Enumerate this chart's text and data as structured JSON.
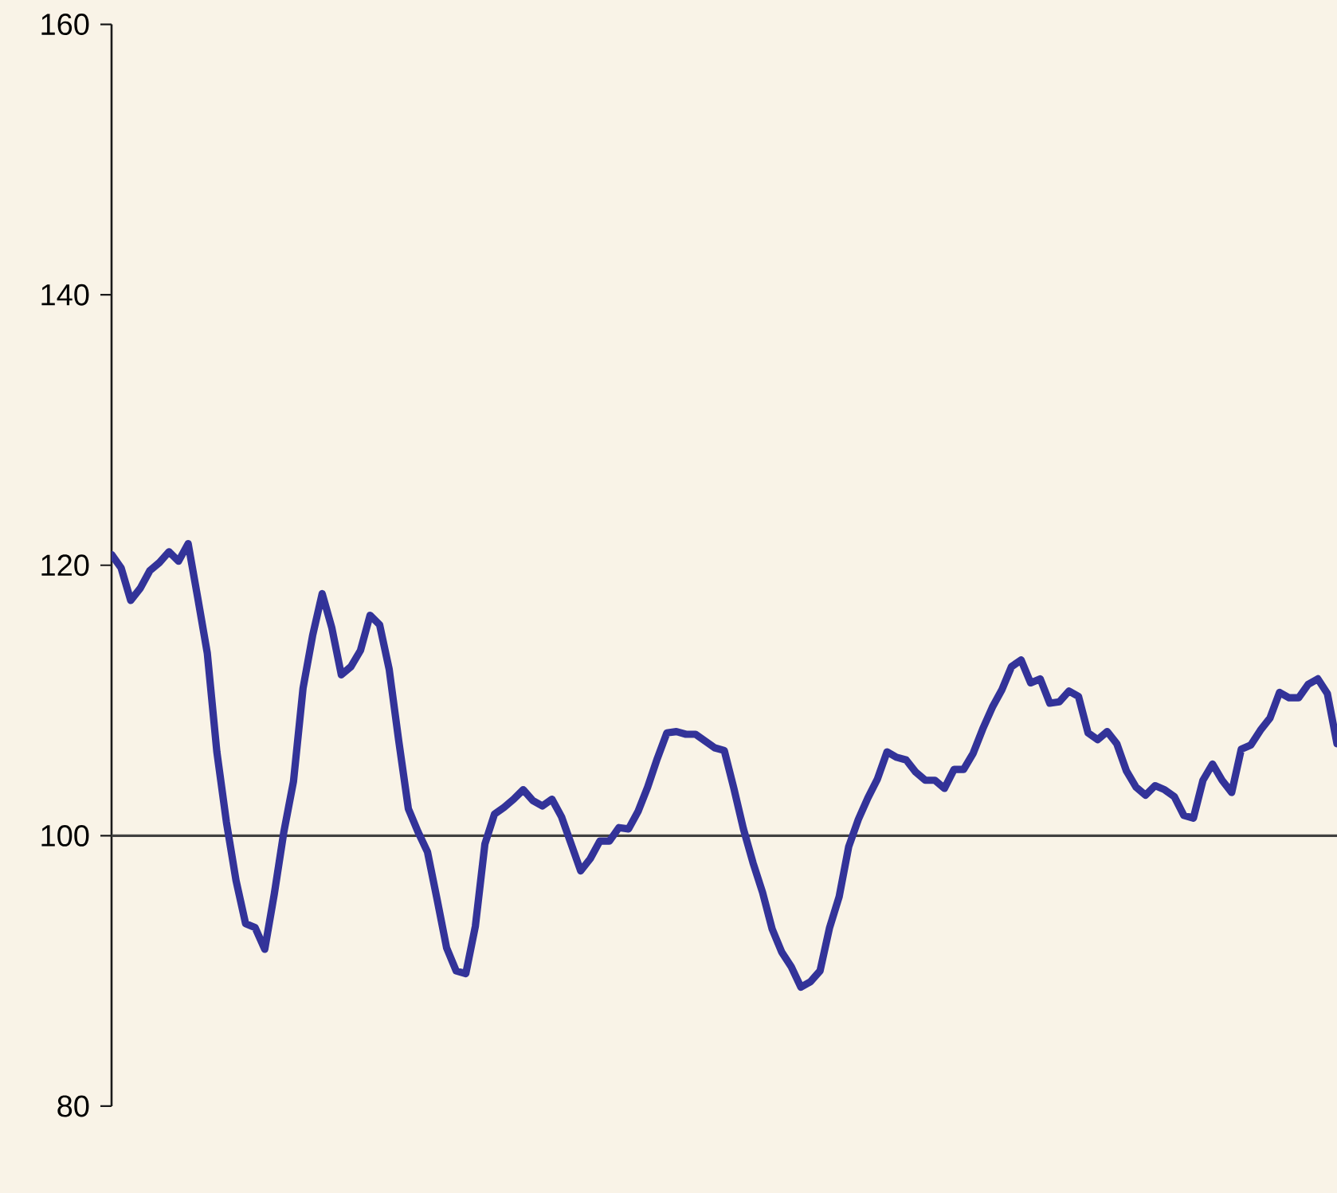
{
  "chart_data": {
    "type": "line",
    "categories": [
      null,
      null,
      null,
      null,
      null,
      null,
      null,
      null,
      null,
      null,
      null,
      null,
      null,
      null,
      null,
      null,
      null,
      null,
      null,
      null,
      null,
      null,
      null,
      null,
      null,
      null,
      null,
      null,
      null,
      null,
      null,
      null,
      null,
      null,
      null,
      null,
      null,
      null,
      null,
      null,
      null,
      null,
      null,
      null,
      null,
      null,
      null,
      null,
      null,
      null,
      null,
      null,
      null,
      null,
      null,
      null,
      null,
      null,
      null,
      null,
      null,
      null,
      null,
      null,
      null,
      null,
      null,
      null,
      null,
      null,
      null,
      null,
      null,
      null,
      null,
      null,
      null,
      null,
      null,
      null,
      null,
      null,
      null,
      null,
      null,
      null,
      null,
      null,
      null,
      null,
      null,
      null,
      null,
      null,
      null,
      null,
      null,
      null,
      null,
      null,
      null,
      null,
      null,
      null,
      null,
      null,
      null,
      null,
      null,
      null,
      null,
      null,
      null,
      null,
      null,
      null,
      null,
      null,
      null,
      null,
      null,
      null,
      null,
      null,
      null,
      null,
      null,
      null,
      null
    ],
    "series": [
      {
        "color": "#333399",
        "values": [
          120.8,
          119.8,
          117.4,
          118.3,
          119.6,
          120.2,
          121.0,
          120.3,
          121.6,
          117.6,
          113.5,
          106.2,
          101.0,
          96.7,
          93.5,
          93.2,
          91.6,
          95.7,
          100.3,
          104.0,
          110.9,
          114.8,
          117.9,
          115.4,
          111.9,
          112.5,
          113.7,
          116.3,
          115.6,
          112.3,
          107.0,
          102.0,
          100.3,
          98.8,
          95.3,
          91.7,
          90.0,
          89.8,
          93.3,
          99.4,
          101.6,
          102.1,
          102.7,
          103.4,
          102.6,
          102.2,
          102.7,
          101.4,
          99.4,
          97.4,
          98.3,
          99.6,
          99.6,
          100.6,
          100.5,
          101.8,
          103.6,
          105.7,
          107.6,
          107.7,
          107.5,
          107.5,
          107.0,
          106.5,
          106.3,
          103.5,
          100.5,
          98.0,
          95.8,
          93.1,
          91.4,
          90.3,
          88.8,
          89.2,
          90.0,
          93.2,
          95.5,
          99.2,
          101.2,
          102.8,
          104.2,
          106.2,
          105.8,
          105.6,
          104.7,
          104.1,
          104.1,
          103.5,
          104.9,
          104.9,
          106.1,
          107.9,
          109.5,
          110.8,
          112.5,
          113.0,
          111.3,
          111.6,
          109.8,
          109.9,
          110.7,
          110.3,
          107.6,
          107.1,
          107.7,
          106.8,
          104.8,
          103.6,
          103.0,
          103.7,
          103.4,
          102.9,
          101.5,
          101.3,
          104.1,
          105.3,
          104.1,
          103.2,
          106.4,
          106.7,
          107.8,
          108.7,
          110.6,
          110.2,
          110.2,
          111.2,
          111.6,
          110.5,
          106.8
        ]
      }
    ],
    "ylim": [
      80,
      160
    ],
    "yticks": [
      80,
      100,
      120,
      140,
      160
    ],
    "ref_lines": [
      {
        "axis": "y",
        "value": 100,
        "color": "#404040"
      }
    ],
    "tick_labels": "y",
    "marker": "none",
    "line_style": "solid"
  }
}
